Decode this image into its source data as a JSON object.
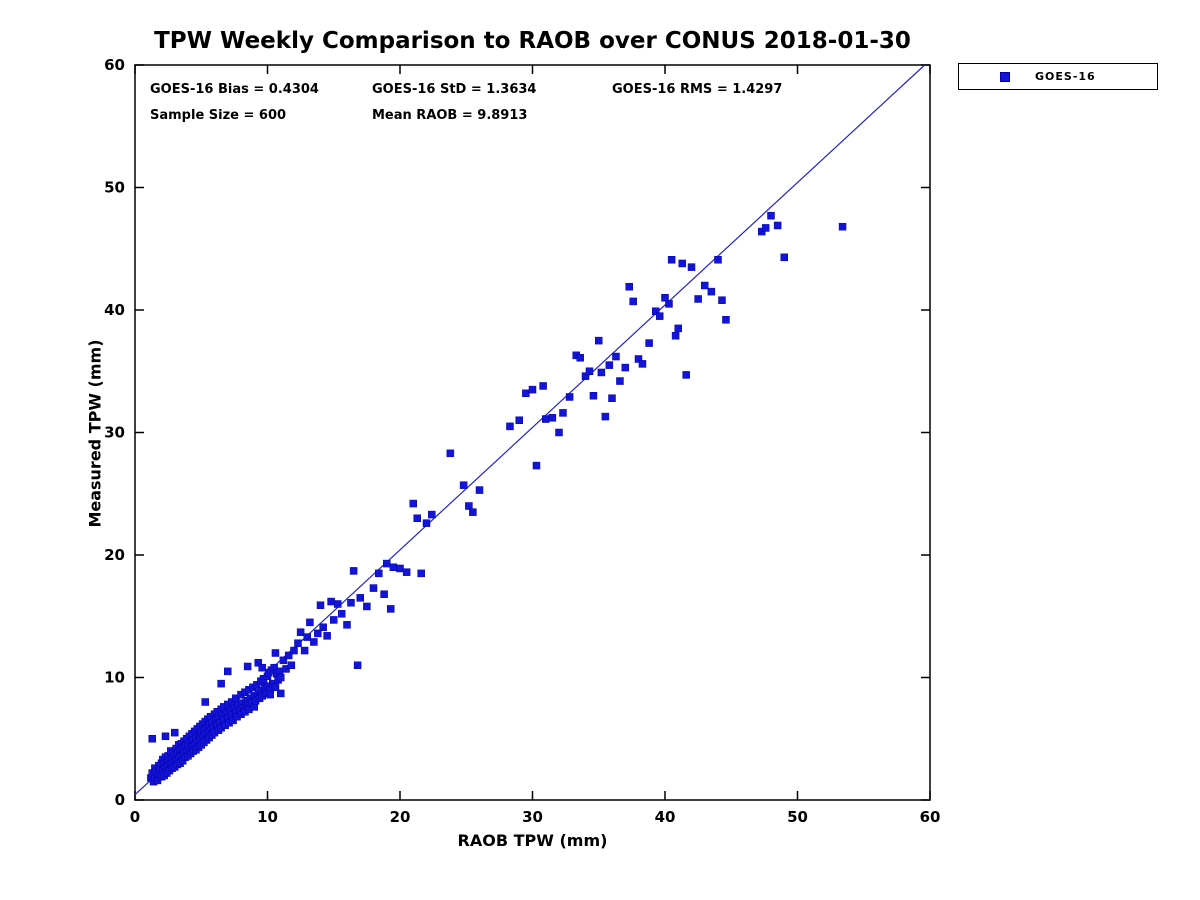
{
  "title": "TPW Weekly Comparison to RAOB over CONUS 2018-01-30",
  "stats": {
    "bias": "GOES-16 Bias = 0.4304",
    "std": "GOES-16 StD = 1.3634",
    "rms": "GOES-16 RMS = 1.4297",
    "sample_size": "Sample Size = 600",
    "mean_raob": "Mean RAOB = 9.8913"
  },
  "legend": {
    "label": "GOES-16",
    "marker_color": "#1414d6"
  },
  "chart_data": {
    "type": "scatter",
    "title": "TPW Weekly Comparison to RAOB over CONUS 2018-01-30",
    "xlabel": "RAOB TPW (mm)",
    "ylabel": "Measured TPW (mm)",
    "xlim": [
      0,
      60
    ],
    "ylim": [
      0,
      60
    ],
    "xticks": [
      0,
      10,
      20,
      30,
      40,
      50,
      60
    ],
    "yticks": [
      0,
      10,
      20,
      30,
      40,
      50,
      60
    ],
    "grid": false,
    "legend_position": "top-right-outside",
    "annotations": [
      "GOES-16 Bias = 0.4304",
      "GOES-16 StD = 1.3634",
      "GOES-16 RMS = 1.4297",
      "Sample Size = 600",
      "Mean RAOB = 9.8913"
    ],
    "reference_line": {
      "x": [
        0.0,
        59.6
      ],
      "y": [
        0.43,
        60.0
      ],
      "color": "#2222cc"
    },
    "series": [
      {
        "name": "GOES-16",
        "marker": "square",
        "color": "#1414d6",
        "edge_color": "#0000aa",
        "points": [
          [
            1.2,
            1.8
          ],
          [
            1.3,
            2.2
          ],
          [
            1.3,
            5.0
          ],
          [
            1.4,
            1.5
          ],
          [
            1.5,
            2.6
          ],
          [
            1.5,
            1.9
          ],
          [
            1.6,
            2.3
          ],
          [
            1.7,
            1.6
          ],
          [
            1.8,
            2.8
          ],
          [
            1.8,
            2.1
          ],
          [
            1.9,
            2.5
          ],
          [
            2.0,
            1.9
          ],
          [
            2.0,
            3.0
          ],
          [
            2.1,
            2.4
          ],
          [
            2.1,
            3.3
          ],
          [
            2.2,
            2.0
          ],
          [
            2.2,
            2.9
          ],
          [
            2.3,
            3.5
          ],
          [
            2.3,
            2.6
          ],
          [
            2.3,
            5.2
          ],
          [
            2.4,
            2.2
          ],
          [
            2.4,
            3.1
          ],
          [
            2.5,
            2.8
          ],
          [
            2.5,
            3.6
          ],
          [
            2.6,
            2.4
          ],
          [
            2.6,
            3.2
          ],
          [
            2.7,
            2.9
          ],
          [
            2.7,
            4.0
          ],
          [
            2.8,
            2.6
          ],
          [
            2.8,
            3.4
          ],
          [
            2.9,
            3.8
          ],
          [
            2.9,
            3.0
          ],
          [
            3.0,
            2.7
          ],
          [
            3.0,
            3.5
          ],
          [
            3.0,
            5.5
          ],
          [
            3.1,
            4.2
          ],
          [
            3.1,
            3.2
          ],
          [
            3.2,
            2.9
          ],
          [
            3.2,
            3.8
          ],
          [
            3.3,
            4.5
          ],
          [
            3.3,
            3.4
          ],
          [
            3.4,
            3.0
          ],
          [
            3.4,
            4.0
          ],
          [
            3.5,
            3.6
          ],
          [
            3.5,
            4.6
          ],
          [
            3.6,
            3.2
          ],
          [
            3.6,
            4.2
          ],
          [
            3.7,
            3.8
          ],
          [
            3.7,
            4.8
          ],
          [
            3.8,
            3.5
          ],
          [
            3.8,
            4.4
          ],
          [
            3.9,
            4.0
          ],
          [
            3.9,
            5.0
          ],
          [
            4.0,
            3.6
          ],
          [
            4.0,
            4.5
          ],
          [
            4.1,
            4.1
          ],
          [
            4.1,
            5.2
          ],
          [
            4.2,
            3.8
          ],
          [
            4.2,
            4.7
          ],
          [
            4.3,
            4.3
          ],
          [
            4.3,
            5.4
          ],
          [
            4.4,
            4.0
          ],
          [
            4.4,
            4.9
          ],
          [
            4.5,
            4.5
          ],
          [
            4.5,
            5.6
          ],
          [
            4.6,
            4.1
          ],
          [
            4.6,
            5.1
          ],
          [
            4.7,
            4.7
          ],
          [
            4.7,
            5.8
          ],
          [
            4.8,
            4.3
          ],
          [
            4.8,
            5.3
          ],
          [
            4.9,
            4.9
          ],
          [
            4.9,
            6.0
          ],
          [
            5.0,
            4.5
          ],
          [
            5.0,
            5.5
          ],
          [
            5.1,
            5.1
          ],
          [
            5.1,
            6.2
          ],
          [
            5.2,
            4.7
          ],
          [
            5.2,
            5.7
          ],
          [
            5.3,
            5.3
          ],
          [
            5.3,
            6.4
          ],
          [
            5.3,
            8.0
          ],
          [
            5.4,
            4.9
          ],
          [
            5.4,
            5.9
          ],
          [
            5.5,
            5.5
          ],
          [
            5.5,
            6.6
          ],
          [
            5.6,
            5.1
          ],
          [
            5.6,
            6.1
          ],
          [
            5.7,
            5.7
          ],
          [
            5.7,
            6.8
          ],
          [
            5.8,
            5.3
          ],
          [
            5.8,
            6.3
          ],
          [
            5.9,
            5.9
          ],
          [
            6.0,
            7.0
          ],
          [
            6.0,
            5.5
          ],
          [
            6.1,
            6.5
          ],
          [
            6.2,
            6.1
          ],
          [
            6.2,
            7.2
          ],
          [
            6.3,
            5.7
          ],
          [
            6.3,
            6.7
          ],
          [
            6.4,
            6.3
          ],
          [
            6.5,
            7.4
          ],
          [
            6.5,
            5.9
          ],
          [
            6.5,
            9.5
          ],
          [
            6.6,
            6.9
          ],
          [
            6.7,
            6.5
          ],
          [
            6.7,
            7.6
          ],
          [
            6.8,
            6.1
          ],
          [
            6.9,
            7.1
          ],
          [
            7.0,
            6.7
          ],
          [
            7.0,
            7.8
          ],
          [
            7.0,
            10.5
          ],
          [
            7.1,
            6.3
          ],
          [
            7.2,
            7.3
          ],
          [
            7.3,
            6.9
          ],
          [
            7.3,
            8.0
          ],
          [
            7.4,
            6.5
          ],
          [
            7.5,
            7.5
          ],
          [
            7.6,
            7.1
          ],
          [
            7.6,
            8.3
          ],
          [
            7.7,
            6.8
          ],
          [
            7.8,
            7.7
          ],
          [
            7.9,
            7.3
          ],
          [
            8.0,
            8.6
          ],
          [
            8.0,
            7.0
          ],
          [
            8.1,
            7.9
          ],
          [
            8.2,
            7.5
          ],
          [
            8.3,
            8.8
          ],
          [
            8.3,
            7.2
          ],
          [
            8.4,
            8.1
          ],
          [
            8.5,
            7.7
          ],
          [
            8.5,
            10.9
          ],
          [
            8.6,
            9.0
          ],
          [
            8.6,
            7.4
          ],
          [
            8.7,
            8.3
          ],
          [
            8.8,
            7.9
          ],
          [
            8.9,
            9.2
          ],
          [
            9.0,
            7.6
          ],
          [
            9.0,
            8.5
          ],
          [
            9.1,
            8.1
          ],
          [
            9.2,
            9.4
          ],
          [
            9.3,
            8.7
          ],
          [
            9.3,
            11.2
          ],
          [
            9.4,
            8.3
          ],
          [
            9.5,
            9.7
          ],
          [
            9.5,
            8.9
          ],
          [
            9.6,
            8.5
          ],
          [
            9.6,
            10.8
          ],
          [
            9.7,
            9.9
          ],
          [
            9.8,
            9.1
          ],
          [
            9.9,
            8.7
          ],
          [
            10.0,
            10.1
          ],
          [
            10.0,
            9.3
          ],
          [
            10.1,
            10.4
          ],
          [
            10.2,
            9.0
          ],
          [
            10.2,
            8.6
          ],
          [
            10.3,
            10.6
          ],
          [
            10.4,
            9.5
          ],
          [
            10.5,
            10.8
          ],
          [
            10.6,
            9.2
          ],
          [
            10.6,
            12.0
          ],
          [
            10.7,
            10.3
          ],
          [
            10.8,
            9.8
          ],
          [
            10.9,
            10.5
          ],
          [
            11.0,
            10.0
          ],
          [
            11.0,
            8.7
          ],
          [
            11.2,
            11.4
          ],
          [
            11.4,
            10.7
          ],
          [
            11.6,
            11.8
          ],
          [
            11.8,
            11.0
          ],
          [
            12.0,
            12.2
          ],
          [
            12.3,
            12.8
          ],
          [
            12.5,
            13.7
          ],
          [
            12.8,
            12.2
          ],
          [
            13.0,
            13.3
          ],
          [
            13.2,
            14.5
          ],
          [
            13.5,
            12.9
          ],
          [
            13.8,
            13.6
          ],
          [
            14.0,
            15.9
          ],
          [
            14.2,
            14.1
          ],
          [
            14.5,
            13.4
          ],
          [
            14.8,
            16.2
          ],
          [
            15.0,
            14.7
          ],
          [
            15.3,
            16.0
          ],
          [
            15.6,
            15.2
          ],
          [
            16.0,
            14.3
          ],
          [
            16.3,
            16.1
          ],
          [
            16.5,
            18.7
          ],
          [
            16.8,
            11.0
          ],
          [
            17.0,
            16.5
          ],
          [
            17.5,
            15.8
          ],
          [
            18.0,
            17.3
          ],
          [
            18.4,
            18.5
          ],
          [
            18.8,
            16.8
          ],
          [
            19.0,
            19.3
          ],
          [
            19.3,
            15.6
          ],
          [
            19.5,
            19.0
          ],
          [
            20.0,
            18.9
          ],
          [
            20.5,
            18.6
          ],
          [
            21.0,
            24.2
          ],
          [
            21.3,
            23.0
          ],
          [
            21.6,
            18.5
          ],
          [
            22.0,
            22.6
          ],
          [
            22.4,
            23.3
          ],
          [
            23.8,
            28.3
          ],
          [
            24.8,
            25.7
          ],
          [
            25.2,
            24.0
          ],
          [
            25.5,
            23.5
          ],
          [
            26.0,
            25.3
          ],
          [
            28.3,
            30.5
          ],
          [
            29.0,
            31.0
          ],
          [
            29.5,
            33.2
          ],
          [
            30.0,
            33.5
          ],
          [
            30.3,
            27.3
          ],
          [
            30.8,
            33.8
          ],
          [
            31.0,
            31.1
          ],
          [
            31.5,
            31.2
          ],
          [
            32.0,
            30.0
          ],
          [
            32.3,
            31.6
          ],
          [
            32.8,
            32.9
          ],
          [
            33.3,
            36.3
          ],
          [
            33.6,
            36.1
          ],
          [
            34.0,
            34.6
          ],
          [
            34.3,
            35.0
          ],
          [
            34.6,
            33.0
          ],
          [
            35.0,
            37.5
          ],
          [
            35.2,
            34.9
          ],
          [
            35.5,
            31.3
          ],
          [
            35.8,
            35.5
          ],
          [
            36.0,
            32.8
          ],
          [
            36.3,
            36.2
          ],
          [
            36.6,
            34.2
          ],
          [
            37.0,
            35.3
          ],
          [
            37.3,
            41.9
          ],
          [
            37.6,
            40.7
          ],
          [
            38.0,
            36.0
          ],
          [
            38.3,
            35.6
          ],
          [
            38.8,
            37.3
          ],
          [
            39.3,
            39.9
          ],
          [
            39.6,
            39.5
          ],
          [
            40.0,
            41.0
          ],
          [
            40.3,
            40.5
          ],
          [
            40.5,
            44.1
          ],
          [
            40.8,
            37.9
          ],
          [
            41.0,
            38.5
          ],
          [
            41.3,
            43.8
          ],
          [
            41.6,
            34.7
          ],
          [
            42.0,
            43.5
          ],
          [
            42.5,
            40.9
          ],
          [
            43.0,
            42.0
          ],
          [
            43.5,
            41.5
          ],
          [
            44.0,
            44.1
          ],
          [
            44.3,
            40.8
          ],
          [
            44.6,
            39.2
          ],
          [
            47.3,
            46.4
          ],
          [
            47.6,
            46.7
          ],
          [
            48.0,
            47.7
          ],
          [
            48.5,
            46.9
          ],
          [
            49.0,
            44.3
          ],
          [
            53.4,
            46.8
          ]
        ]
      }
    ]
  }
}
